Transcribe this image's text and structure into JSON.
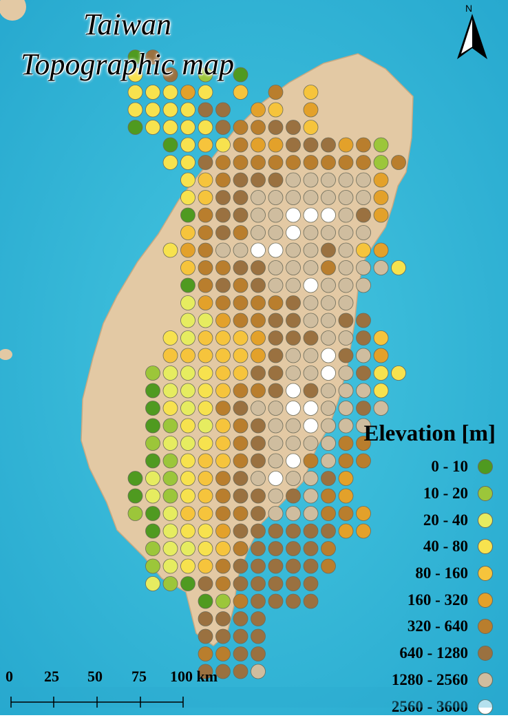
{
  "title_line1": "Taiwan",
  "title_line2": "Topographic map",
  "north_label": "N",
  "legend": {
    "title": "Elevation [m]",
    "classes": [
      {
        "label": "0 - 10",
        "color": "#4f9a20"
      },
      {
        "label": "10 - 20",
        "color": "#9cc63a"
      },
      {
        "label": "20 - 40",
        "color": "#e6ec60"
      },
      {
        "label": "40 - 80",
        "color": "#f7e24e"
      },
      {
        "label": "80 - 160",
        "color": "#f6c43c"
      },
      {
        "label": "160 - 320",
        "color": "#e3a12a"
      },
      {
        "label": "320 - 640",
        "color": "#b97e2d"
      },
      {
        "label": "640 - 1280",
        "color": "#9a7140"
      },
      {
        "label": "1280 - 2560",
        "color": "#cfbd9f"
      },
      {
        "label": "2560 - 3600",
        "color": "#ffffff"
      }
    ]
  },
  "scale_bar": {
    "labels": [
      "0",
      "25",
      "50",
      "75",
      "100 km"
    ]
  },
  "colors": {
    "sea": "#35b9d8",
    "land": "#e3c9a4",
    "dot_stroke": "#6b6b5a"
  },
  "grid_rows": [
    "..-07-.-....",
    "..-3-7-1-0..",
    "..-33353-4-6-4-..",
    "..-333377-54-5..",
    "...03333766774..",
    ".....0343655777561",
    ".....33766666666616",
    "......346777888885",
    "......347788888885",
    "......067788999875",
    "......46768898888",
    ".....3568899887845",
    "......4667788868883",
    "......06767889888",
    "......2566667888",
    "......22566778877",
    ".....3244457778874",
    ".....4444457889785",
    "....122344778898733",
    "....02234667978883",
    "....03236788998878",
    "....0132467889888",
    "....1223467888866",
    "....0134467896866",
    "...0213467898875",
    "...0213467787865",
    "...10244667888665",
    "....0233577777755",
    "....12234677776",
    "....12346777776",
    "....2107677777",
    ".......0167777",
    ".......7777",
    ".......7777",
    ".......6677",
    ".......7778"
  ]
}
